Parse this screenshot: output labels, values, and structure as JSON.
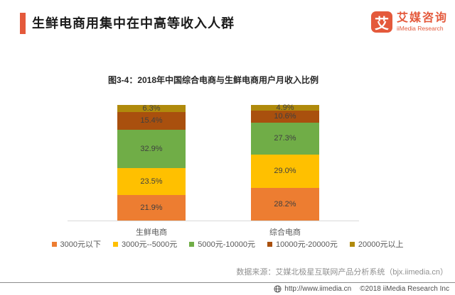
{
  "header": {
    "title": "生鲜电商用集中在中高等收入人群",
    "logo": {
      "icon_char": "艾",
      "name_cn": "艾媒咨询",
      "name_en": "iiMedia Research"
    }
  },
  "chart_data": {
    "type": "bar",
    "stacked": true,
    "title": "图3-4：2018年中国综合电商与生鲜电商用户月收入比例",
    "categories": [
      "生鲜电商",
      "综合电商"
    ],
    "series": [
      {
        "name": "3000元以下",
        "color": "#ED7D31",
        "values": [
          21.9,
          28.2
        ]
      },
      {
        "name": "3000元--5000元",
        "color": "#FFC000",
        "values": [
          23.5,
          29.0
        ]
      },
      {
        "name": "5000元-10000元",
        "color": "#70AD47",
        "values": [
          32.9,
          27.3
        ]
      },
      {
        "name": "10000元-20000元",
        "color": "#A9500E",
        "values": [
          15.4,
          10.6
        ]
      },
      {
        "name": "20000元以上",
        "color": "#B08A0C",
        "values": [
          6.3,
          4.9
        ]
      }
    ],
    "value_suffix": "%",
    "ylim": [
      0,
      100
    ],
    "grid": false,
    "legend_position": "bottom"
  },
  "source_note": "数据来源：艾媒北极星互联网产品分析系统（bjx.iimedia.cn）",
  "footer": {
    "url": "http://www.iimedia.cn",
    "copyright": "©2018  iiMedia Research  Inc"
  },
  "colors": {
    "brand_accent": "#E4593B",
    "axis_line": "#d9d9d9",
    "label_text": "#404040"
  }
}
